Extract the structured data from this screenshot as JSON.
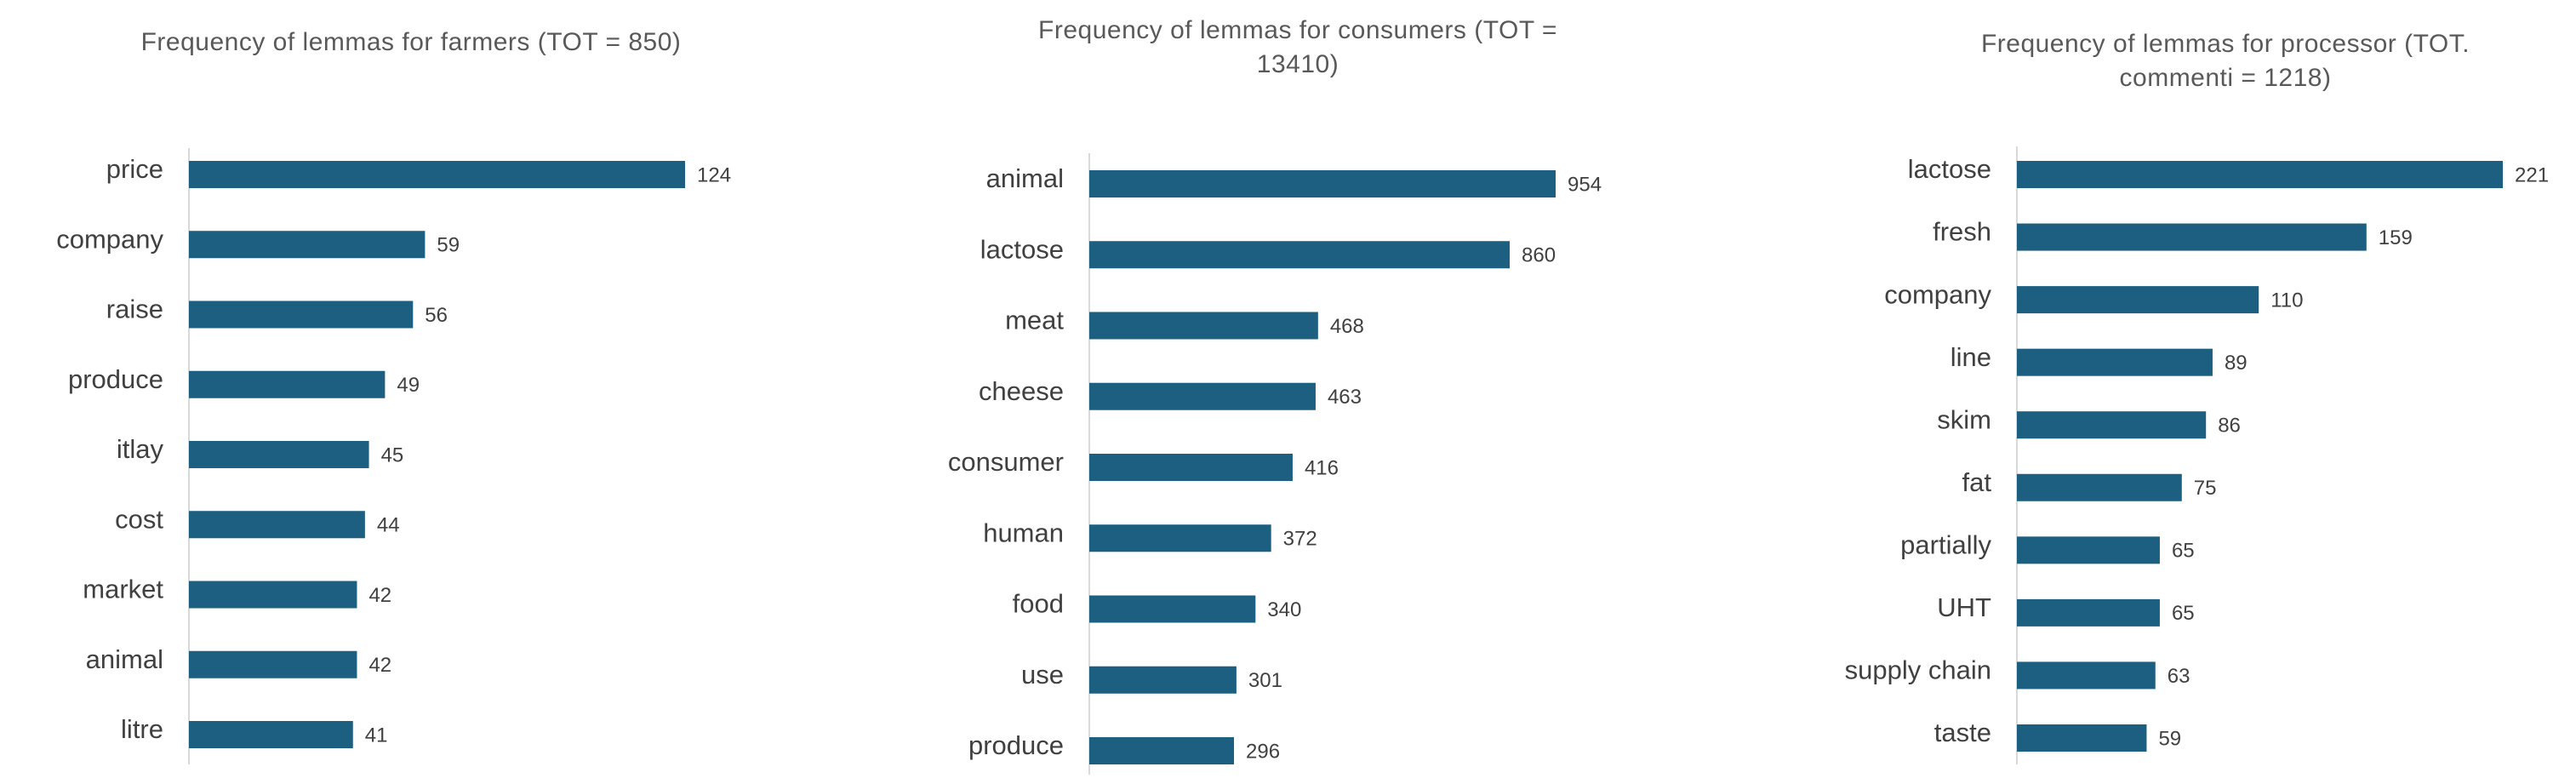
{
  "chart_data": [
    {
      "type": "bar",
      "orientation": "horizontal",
      "title": "Frequency of lemmas for farmers (TOT = 850)",
      "categories": [
        "price",
        "company",
        "raise",
        "produce",
        "itlay",
        "cost",
        "market",
        "animal",
        "litre"
      ],
      "values": [
        124,
        59,
        56,
        49,
        45,
        44,
        42,
        42,
        41
      ],
      "color": "#1d5f80"
    },
    {
      "type": "bar",
      "orientation": "horizontal",
      "title": "Frequency of lemmas for consumers (TOT = 13410)",
      "categories": [
        "animal",
        "lactose",
        "meat",
        "cheese",
        "consumer",
        "human",
        "food",
        "use",
        "produce"
      ],
      "values": [
        954,
        860,
        468,
        463,
        416,
        372,
        340,
        301,
        296
      ],
      "color": "#1d5f80"
    },
    {
      "type": "bar",
      "orientation": "horizontal",
      "title": "Frequency of lemmas for processor (TOT. commenti = 1218)",
      "categories": [
        "lactose",
        "fresh",
        "company",
        "line",
        "skim",
        "fat",
        "partially",
        "UHT",
        "supply chain",
        "taste"
      ],
      "values": [
        221,
        159,
        110,
        89,
        86,
        75,
        65,
        65,
        63,
        59
      ],
      "color": "#1d5f80"
    }
  ]
}
